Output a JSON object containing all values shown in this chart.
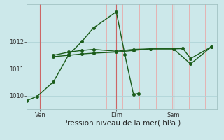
{
  "background_color": "#cce8ea",
  "color": "#1a5c1a",
  "xlabel": "Pression niveau de la mer( hPa )",
  "xlabel_fontsize": 7.5,
  "ylim_bottom": 1009.5,
  "ylim_top": 1013.4,
  "yticks": [
    1010,
    1011,
    1012
  ],
  "ytick_fontsize": 6,
  "xtick_fontsize": 6,
  "grid_color_h": "#b0d4d8",
  "grid_color_v": "#e8aaaa",
  "vline_color": "#cc6666",
  "day_vline_color": "#cc5555",
  "line_color": "#1a5c1a",
  "linewidth": 1.0,
  "markersize": 2.5,
  "xlim": [
    0,
    10
  ],
  "x_ven": 0.7,
  "x_dim": 4.7,
  "x_sam": 7.7,
  "line1_x": [
    0.0,
    0.55,
    1.4,
    2.2,
    2.9,
    3.5,
    4.7,
    5.15,
    5.6,
    5.85
  ],
  "line1_y": [
    1009.82,
    1009.98,
    1010.52,
    1011.52,
    1012.02,
    1012.52,
    1013.12,
    1011.52,
    1010.05,
    1010.08
  ],
  "line2_x": [
    1.4,
    2.2,
    2.9,
    3.5,
    4.7,
    5.6,
    6.5,
    7.7,
    8.6,
    9.7
  ],
  "line2_y": [
    1011.45,
    1011.5,
    1011.55,
    1011.58,
    1011.62,
    1011.68,
    1011.74,
    1011.74,
    1011.18,
    1011.82
  ],
  "line3_x": [
    1.4,
    2.2,
    2.9,
    3.5,
    4.7,
    5.6,
    6.5,
    7.7,
    8.2,
    8.6,
    9.7
  ],
  "line3_y": [
    1011.5,
    1011.62,
    1011.68,
    1011.72,
    1011.65,
    1011.72,
    1011.74,
    1011.74,
    1011.75,
    1011.38,
    1011.82
  ],
  "vgrid_positions": [
    0.7,
    1.57,
    2.43,
    3.3,
    4.17,
    5.03,
    5.9,
    6.77,
    7.63,
    8.5,
    9.37
  ],
  "day_lines": [
    0.7,
    4.7,
    7.7
  ]
}
